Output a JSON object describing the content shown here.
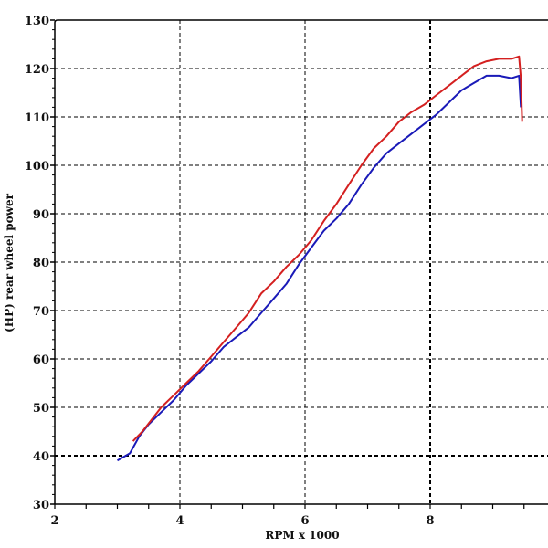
{
  "chart_data": {
    "type": "line",
    "title": "",
    "xlabel": "RPM x 1000",
    "ylabel": "(HP) rear wheel power",
    "xlim": [
      2,
      9.85
    ],
    "ylim": [
      30,
      130
    ],
    "x_ticks": [
      2,
      4,
      6,
      8
    ],
    "y_ticks": [
      30,
      40,
      50,
      60,
      70,
      80,
      90,
      100,
      110,
      120,
      130
    ],
    "grid": true,
    "legend": null,
    "series": [
      {
        "name": "blue run",
        "color": "#1a1ab8",
        "x": [
          3.0,
          3.2,
          3.35,
          3.5,
          3.7,
          3.9,
          4.1,
          4.3,
          4.5,
          4.7,
          4.9,
          5.1,
          5.3,
          5.5,
          5.7,
          5.9,
          6.1,
          6.3,
          6.5,
          6.7,
          6.9,
          7.1,
          7.3,
          7.5,
          7.7,
          7.9,
          8.1,
          8.3,
          8.5,
          8.7,
          8.9,
          9.1,
          9.3,
          9.42,
          9.45
        ],
        "y": [
          39,
          40.5,
          44,
          46.5,
          49,
          51.5,
          54.5,
          57,
          59.5,
          62.5,
          64.5,
          66.5,
          69.5,
          72.5,
          75.5,
          79.5,
          83,
          86.5,
          89,
          92,
          96,
          99.5,
          102.5,
          104.5,
          106.5,
          108.5,
          110.5,
          113,
          115.5,
          117,
          118.5,
          118.5,
          118,
          118.5,
          112
        ]
      },
      {
        "name": "red run",
        "color": "#d42020",
        "x": [
          3.25,
          3.4,
          3.55,
          3.7,
          3.9,
          4.1,
          4.3,
          4.5,
          4.7,
          4.9,
          5.1,
          5.3,
          5.5,
          5.7,
          5.9,
          6.1,
          6.3,
          6.5,
          6.7,
          6.9,
          7.1,
          7.3,
          7.5,
          7.7,
          7.9,
          8.1,
          8.3,
          8.5,
          8.7,
          8.9,
          9.1,
          9.3,
          9.42,
          9.45,
          9.47
        ],
        "y": [
          43,
          45,
          47.5,
          50,
          52.5,
          55,
          57.5,
          60.5,
          63.5,
          66.5,
          69.5,
          73.5,
          76,
          79,
          81.5,
          84.5,
          88.5,
          92,
          96,
          100,
          103.5,
          106,
          109,
          111,
          112.5,
          114.5,
          116.5,
          118.5,
          120.5,
          121.5,
          122,
          122,
          122.5,
          118,
          109
        ]
      }
    ]
  }
}
